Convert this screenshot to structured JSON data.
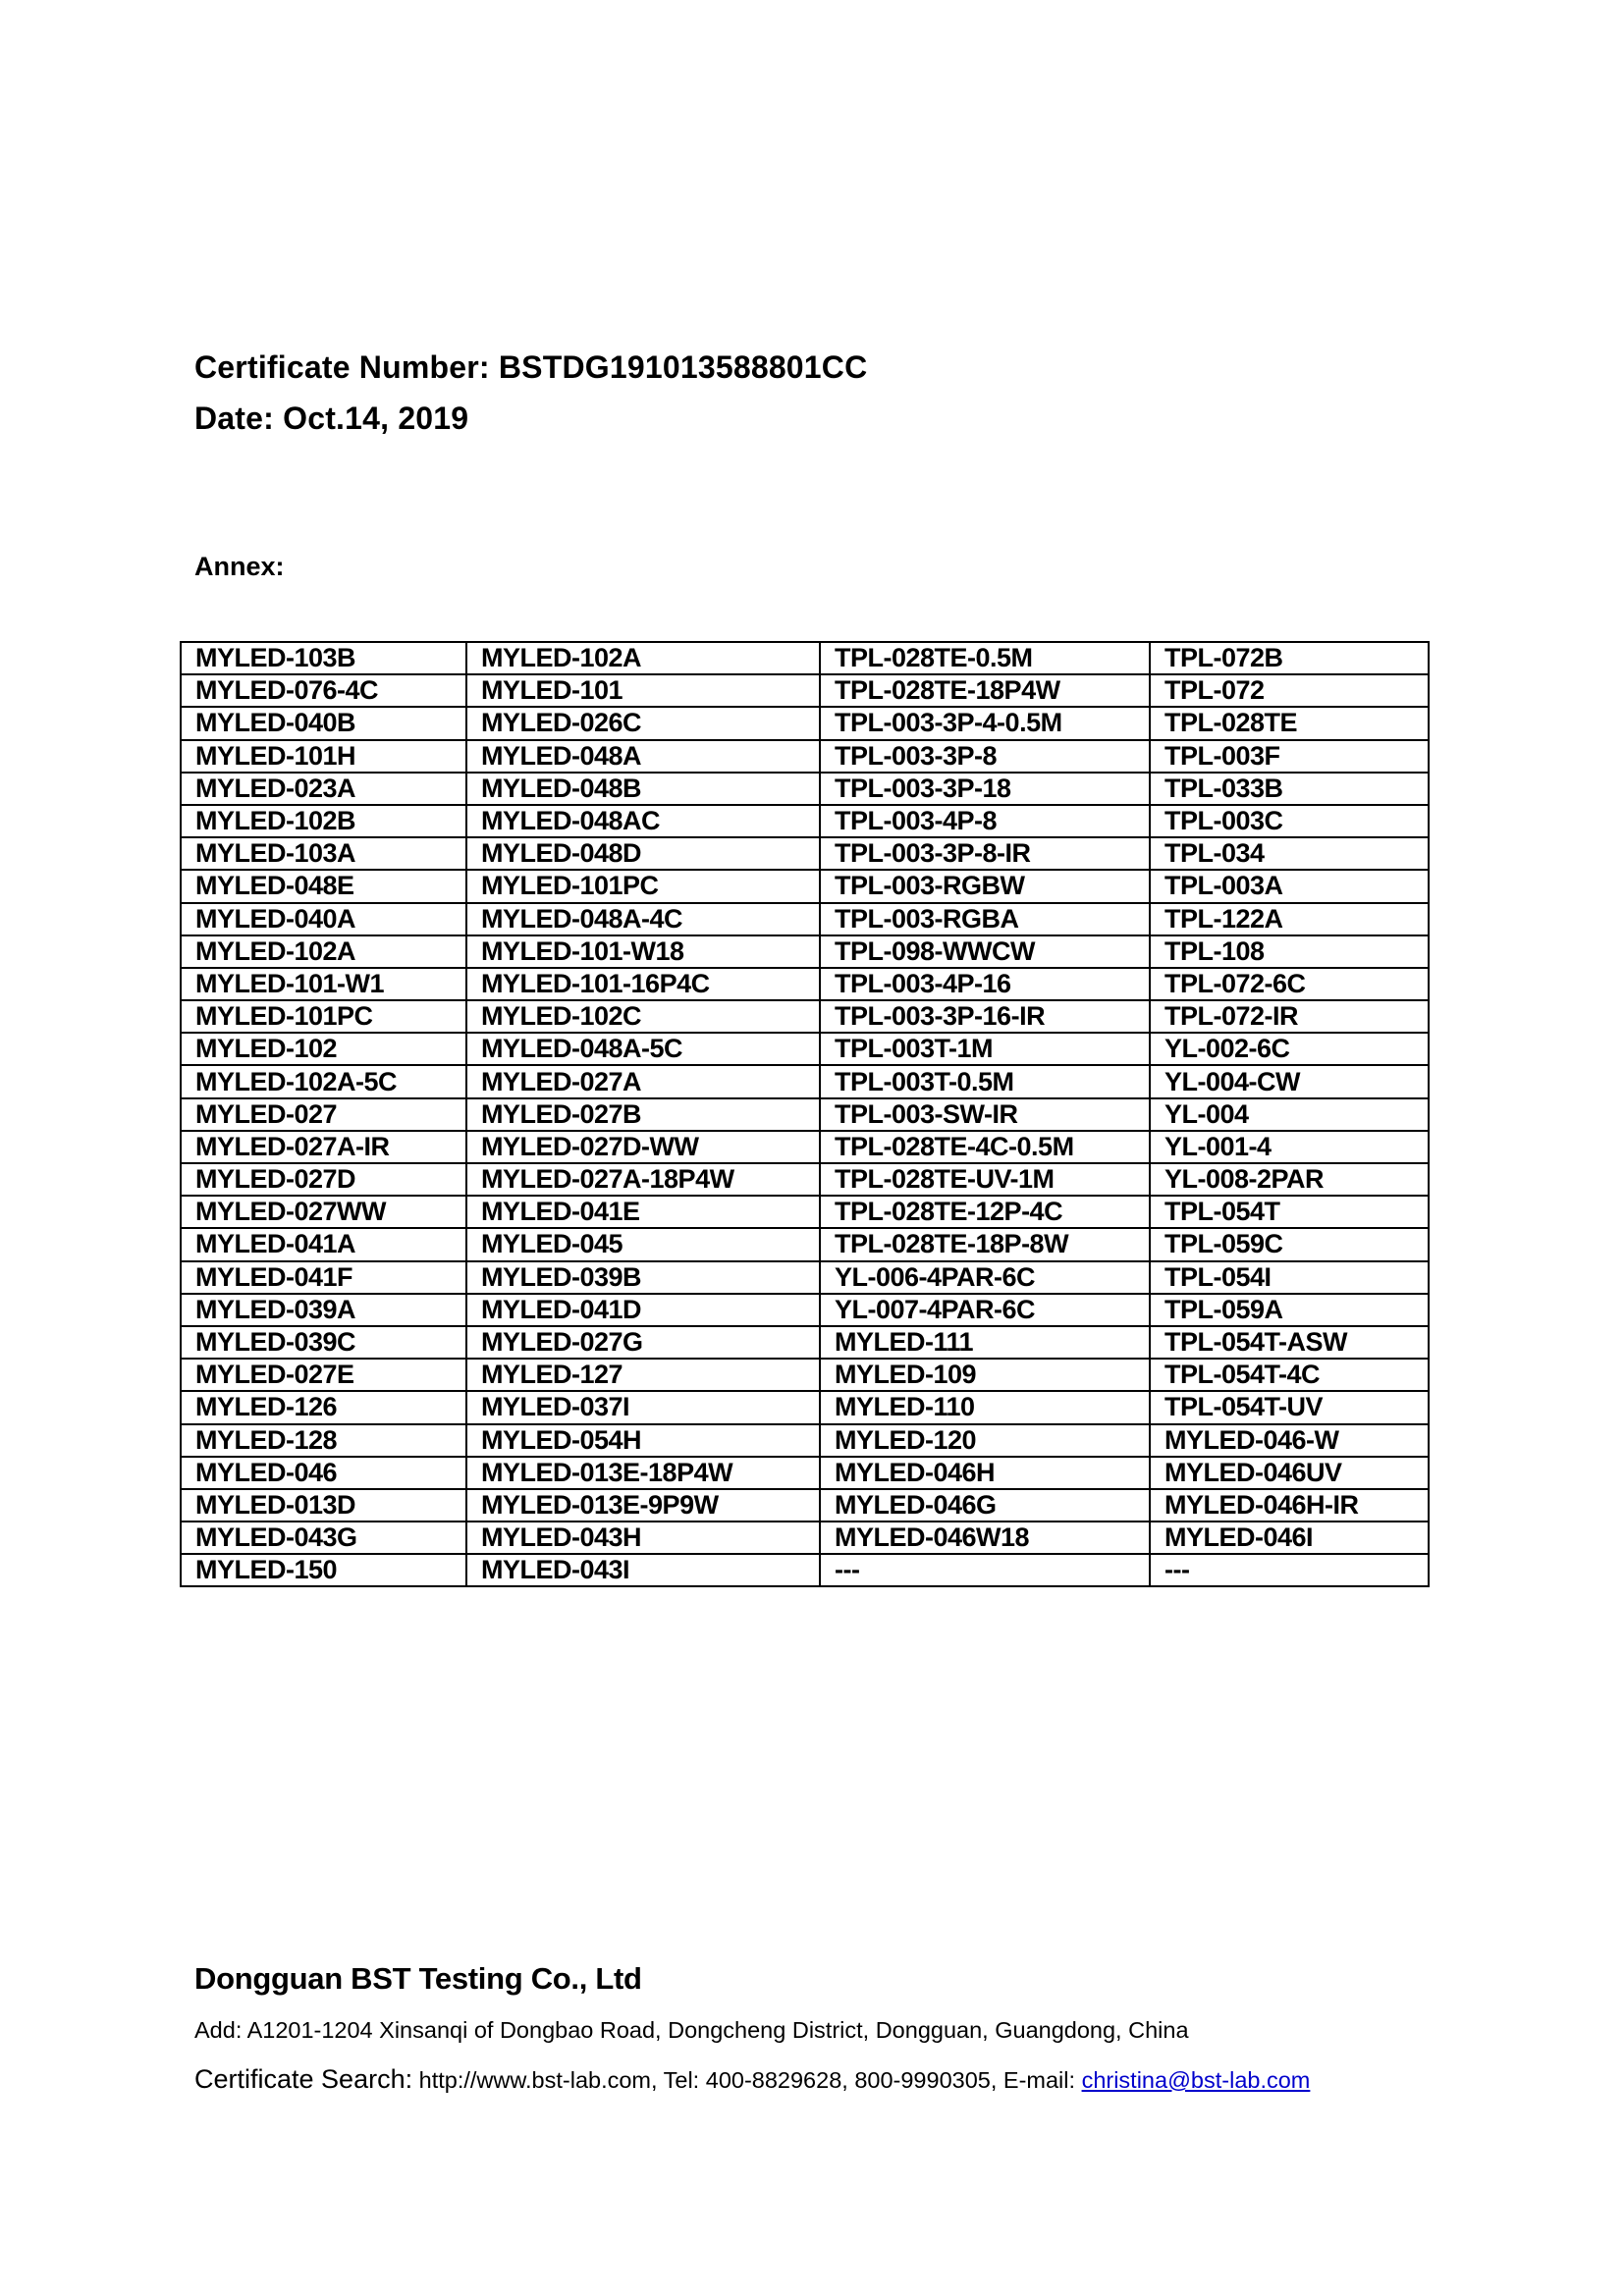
{
  "header": {
    "certificate_number": "Certificate Number: BSTDG191013588801CC",
    "date": "Date: Oct.14, 2019"
  },
  "annex_label": "Annex:",
  "table": {
    "rows": [
      [
        "MYLED-103B",
        "MYLED-102A",
        "TPL-028TE-0.5M",
        "TPL-072B"
      ],
      [
        "MYLED-076-4C",
        "MYLED-101",
        "TPL-028TE-18P4W",
        "TPL-072"
      ],
      [
        "MYLED-040B",
        "MYLED-026C",
        "TPL-003-3P-4-0.5M",
        "TPL-028TE"
      ],
      [
        "MYLED-101H",
        "MYLED-048A",
        "TPL-003-3P-8",
        "TPL-003F"
      ],
      [
        "MYLED-023A",
        "MYLED-048B",
        "TPL-003-3P-18",
        "TPL-033B"
      ],
      [
        "MYLED-102B",
        "MYLED-048AC",
        "TPL-003-4P-8",
        "TPL-003C"
      ],
      [
        "MYLED-103A",
        "MYLED-048D",
        "TPL-003-3P-8-IR",
        "TPL-034"
      ],
      [
        "MYLED-048E",
        "MYLED-101PC",
        "TPL-003-RGBW",
        "TPL-003A"
      ],
      [
        "MYLED-040A",
        "MYLED-048A-4C",
        "TPL-003-RGBA",
        "TPL-122A"
      ],
      [
        "MYLED-102A",
        "MYLED-101-W18",
        "TPL-098-WWCW",
        "TPL-108"
      ],
      [
        "MYLED-101-W1",
        "MYLED-101-16P4C",
        "TPL-003-4P-16",
        "TPL-072-6C"
      ],
      [
        "MYLED-101PC",
        "MYLED-102C",
        "TPL-003-3P-16-IR",
        "TPL-072-IR"
      ],
      [
        "MYLED-102",
        "MYLED-048A-5C",
        "TPL-003T-1M",
        "YL-002-6C"
      ],
      [
        "MYLED-102A-5C",
        "MYLED-027A",
        "TPL-003T-0.5M",
        "YL-004-CW"
      ],
      [
        "MYLED-027",
        "MYLED-027B",
        "TPL-003-SW-IR",
        "YL-004"
      ],
      [
        "MYLED-027A-IR",
        "MYLED-027D-WW",
        "TPL-028TE-4C-0.5M",
        "YL-001-4"
      ],
      [
        "MYLED-027D",
        "MYLED-027A-18P4W",
        "TPL-028TE-UV-1M",
        "YL-008-2PAR"
      ],
      [
        "MYLED-027WW",
        "MYLED-041E",
        "TPL-028TE-12P-4C",
        "TPL-054T"
      ],
      [
        "MYLED-041A",
        "MYLED-045",
        "TPL-028TE-18P-8W",
        "TPL-059C"
      ],
      [
        "MYLED-041F",
        "MYLED-039B",
        "YL-006-4PAR-6C",
        "TPL-054I"
      ],
      [
        "MYLED-039A",
        "MYLED-041D",
        "YL-007-4PAR-6C",
        "TPL-059A"
      ],
      [
        "MYLED-039C",
        "MYLED-027G",
        "MYLED-111",
        "TPL-054T-ASW"
      ],
      [
        "MYLED-027E",
        "MYLED-127",
        "MYLED-109",
        "TPL-054T-4C"
      ],
      [
        "MYLED-126",
        "MYLED-037I",
        "MYLED-110",
        "TPL-054T-UV"
      ],
      [
        "MYLED-128",
        "MYLED-054H",
        "MYLED-120",
        "MYLED-046-W"
      ],
      [
        "MYLED-046",
        "MYLED-013E-18P4W",
        "MYLED-046H",
        "MYLED-046UV"
      ],
      [
        "MYLED-013D",
        "MYLED-013E-9P9W",
        "MYLED-046G",
        "MYLED-046H-IR"
      ],
      [
        "MYLED-043G",
        "MYLED-043H",
        "MYLED-046W18",
        "MYLED-046I"
      ],
      [
        "MYLED-150",
        "MYLED-043I",
        "---",
        "---"
      ]
    ]
  },
  "footer": {
    "company": "Dongguan BST Testing Co., Ltd",
    "address": "Add: A1201-1204 Xinsanqi of Dongbao Road, Dongcheng District, Dongguan, Guangdong, China",
    "search_label": "Certificate Search:",
    "search_text": " http://www.bst-lab.com, Tel: 400-8829628, 800-9990305, E-mail: ",
    "email": "christina@bst-lab.com",
    "link_color": "#0000cc"
  }
}
